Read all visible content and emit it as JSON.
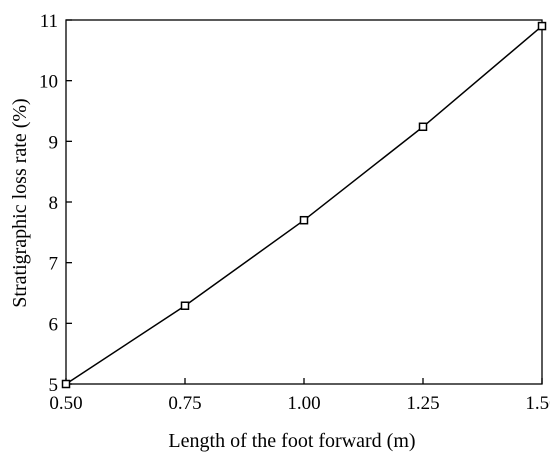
{
  "chart_data": {
    "type": "line",
    "title": "",
    "xlabel": "Length of the foot forward (m)",
    "ylabel": "Stratigraphic loss rate (%)",
    "xlim": [
      0.5,
      1.5
    ],
    "ylim": [
      5,
      11
    ],
    "xticks": [
      0.5,
      0.75,
      1.0,
      1.25,
      1.5
    ],
    "xtick_labels": [
      "0.50",
      "0.75",
      "1.00",
      "1.25",
      "1.50"
    ],
    "yticks": [
      5,
      6,
      7,
      8,
      9,
      10,
      11
    ],
    "ytick_labels": [
      "5",
      "6",
      "7",
      "8",
      "9",
      "10",
      "11"
    ],
    "grid": false,
    "legend": "none",
    "series": [
      {
        "marker": "hollow-square",
        "color": "#000000",
        "x": [
          0.5,
          0.75,
          1.0,
          1.25,
          1.5
        ],
        "y": [
          5.0,
          6.29,
          7.7,
          9.24,
          10.9
        ]
      }
    ]
  }
}
